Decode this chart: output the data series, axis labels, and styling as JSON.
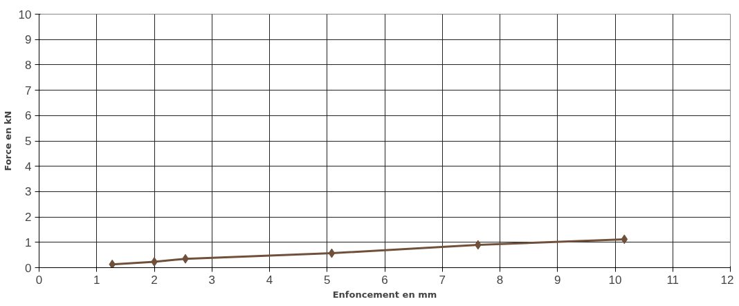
{
  "chart_data": {
    "type": "line",
    "xlabel": "Enfoncement en mm",
    "ylabel": "Force en kN",
    "x": [
      1.27,
      2.0,
      2.54,
      5.08,
      7.62,
      10.16
    ],
    "series": [
      {
        "color": "#70503a",
        "values": [
          0.13,
          0.23,
          0.35,
          0.57,
          0.9,
          1.12
        ]
      }
    ],
    "xlim": [
      0,
      12
    ],
    "xticks": [
      0,
      1,
      2,
      3,
      4,
      5,
      6,
      7,
      8,
      9,
      10,
      11,
      12
    ],
    "ylim": [
      0,
      10
    ],
    "yticks": [
      0,
      1,
      2,
      3,
      4,
      5,
      6,
      7,
      8,
      9,
      10
    ],
    "grid": true,
    "marker": "diamond",
    "line_style": "solid"
  }
}
